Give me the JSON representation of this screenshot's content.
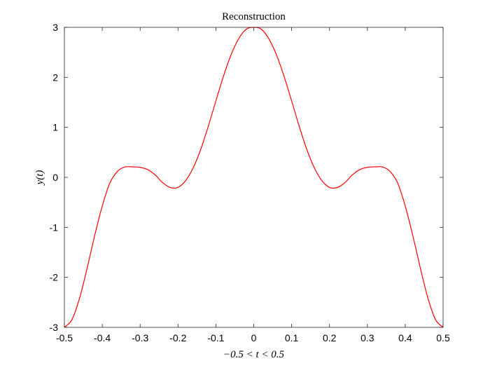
{
  "chart_data": {
    "type": "line",
    "title": "Reconstruction",
    "xlabel": "−0.5 < t < 0.5",
    "ylabel": "y(t)",
    "xlim": [
      -0.5,
      0.5
    ],
    "ylim": [
      -3,
      3
    ],
    "xticks": [
      -0.5,
      -0.4,
      -0.3,
      -0.2,
      -0.1,
      0,
      0.1,
      0.2,
      0.3,
      0.4,
      0.5
    ],
    "xtick_labels": [
      "-0.5",
      "-0.4",
      "-0.3",
      "-0.2",
      "-0.1",
      "0",
      "0.1",
      "0.2",
      "0.3",
      "0.4",
      "0.5"
    ],
    "yticks": [
      -3,
      -2,
      -1,
      0,
      1,
      2,
      3
    ],
    "ytick_labels": [
      "-3",
      "-2",
      "-1",
      "0",
      "1",
      "2",
      "3"
    ],
    "grid": false,
    "series": [
      {
        "color": "#ff0000",
        "x": [
          -0.5,
          -0.48,
          -0.46,
          -0.44,
          -0.42,
          -0.4,
          -0.38,
          -0.36,
          -0.34,
          -0.32,
          -0.3,
          -0.28,
          -0.26,
          -0.24,
          -0.22,
          -0.2,
          -0.18,
          -0.16,
          -0.14,
          -0.12,
          -0.1,
          -0.08,
          -0.06,
          -0.04,
          -0.02,
          0,
          0.02,
          0.04,
          0.06,
          0.08,
          0.1,
          0.12,
          0.14,
          0.16,
          0.18,
          0.2,
          0.22,
          0.24,
          0.26,
          0.28,
          0.3,
          0.32,
          0.34,
          0.36,
          0.38,
          0.4,
          0.42,
          0.44,
          0.46,
          0.48,
          0.5
        ],
        "y": [
          -3,
          -2.845,
          -2.418,
          -1.817,
          -1.164,
          -0.572,
          -0.114,
          0.118,
          0.207,
          0.21,
          0.2,
          0.155,
          0.046,
          -0.11,
          -0.205,
          -0.2,
          -0.066,
          0.189,
          0.559,
          1.023,
          1.528,
          2.021,
          2.45,
          2.77,
          2.962,
          3,
          2.962,
          2.77,
          2.45,
          2.021,
          1.528,
          1.023,
          0.559,
          0.189,
          -0.066,
          -0.2,
          -0.205,
          -0.11,
          0.046,
          0.155,
          0.2,
          0.21,
          0.207,
          0.118,
          -0.114,
          -0.572,
          -1.164,
          -1.817,
          -2.418,
          -2.845,
          -3
        ]
      }
    ]
  }
}
